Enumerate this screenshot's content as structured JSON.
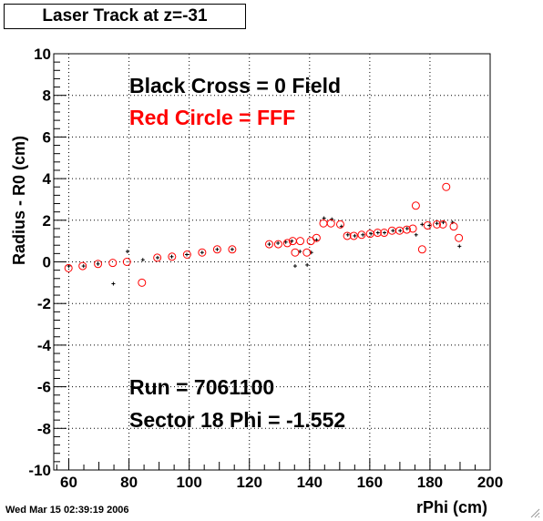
{
  "chart_data": {
    "type": "scatter",
    "title": "Laser Track at z=-31",
    "xlabel": "rPhi (cm)",
    "ylabel": "Radius - R0 (cm)",
    "xlim": [
      55,
      200
    ],
    "ylim": [
      -10,
      10
    ],
    "xticks": [
      60,
      80,
      100,
      120,
      140,
      160,
      180,
      200
    ],
    "yticks": [
      -10,
      -8,
      -6,
      -4,
      -2,
      0,
      2,
      4,
      6,
      8,
      10
    ],
    "grid": true,
    "annotations": [
      {
        "text": "Black Cross  = 0 Field",
        "color": "#000000"
      },
      {
        "text": "Red Circle = FFF",
        "color": "#ff0000"
      },
      {
        "text": "Run = 7061100",
        "color": "#000000"
      },
      {
        "text": "Sector 18 Phi = -1.552",
        "color": "#000000"
      }
    ],
    "series": [
      {
        "marker": "cross",
        "color": "#000000",
        "points": [
          [
            60.0,
            -0.2
          ],
          [
            64.9,
            -0.2
          ],
          [
            69.7,
            -0.1
          ],
          [
            74.8,
            -1.05
          ],
          [
            79.5,
            0.5
          ],
          [
            84.6,
            0.1
          ],
          [
            89.5,
            0.2
          ],
          [
            94.2,
            0.25
          ],
          [
            99.2,
            0.35
          ],
          [
            104.3,
            0.45
          ],
          [
            109.3,
            0.6
          ],
          [
            114.3,
            0.6
          ],
          [
            126.6,
            0.85
          ],
          [
            129.5,
            0.9
          ],
          [
            132.1,
            0.95
          ],
          [
            134.1,
            1.0
          ],
          [
            135.2,
            -0.2
          ],
          [
            136.8,
            0.5
          ],
          [
            139.2,
            -0.15
          ],
          [
            140.6,
            0.45
          ],
          [
            142.3,
            1.05
          ],
          [
            144.8,
            2.1
          ],
          [
            147.4,
            2.05
          ],
          [
            150.6,
            1.7
          ],
          [
            152.7,
            1.3
          ],
          [
            155.0,
            1.25
          ],
          [
            157.7,
            1.3
          ],
          [
            160.4,
            1.35
          ],
          [
            162.7,
            1.4
          ],
          [
            164.9,
            1.4
          ],
          [
            167.7,
            1.5
          ],
          [
            170.1,
            1.5
          ],
          [
            172.4,
            1.6
          ],
          [
            175.4,
            1.3
          ],
          [
            177.4,
            1.8
          ],
          [
            179.8,
            1.75
          ],
          [
            182.3,
            1.85
          ],
          [
            184.4,
            1.9
          ],
          [
            187.5,
            1.9
          ],
          [
            189.8,
            0.75
          ]
        ]
      },
      {
        "marker": "circle",
        "color": "#ff0000",
        "points": [
          [
            59.9,
            -0.3
          ],
          [
            64.6,
            -0.2
          ],
          [
            69.7,
            -0.1
          ],
          [
            74.6,
            -0.05
          ],
          [
            79.3,
            0.0
          ],
          [
            84.3,
            -1.0
          ],
          [
            89.4,
            0.2
          ],
          [
            94.3,
            0.25
          ],
          [
            99.3,
            0.35
          ],
          [
            104.3,
            0.45
          ],
          [
            109.3,
            0.6
          ],
          [
            114.3,
            0.6
          ],
          [
            126.6,
            0.85
          ],
          [
            129.6,
            0.85
          ],
          [
            132.6,
            0.9
          ],
          [
            134.4,
            1.0
          ],
          [
            135.2,
            0.45
          ],
          [
            136.9,
            1.0
          ],
          [
            139.1,
            0.45
          ],
          [
            140.4,
            1.0
          ],
          [
            142.3,
            1.15
          ],
          [
            144.6,
            1.85
          ],
          [
            147.1,
            1.85
          ],
          [
            150.2,
            1.8
          ],
          [
            152.5,
            1.25
          ],
          [
            154.7,
            1.25
          ],
          [
            157.3,
            1.3
          ],
          [
            160.1,
            1.35
          ],
          [
            162.6,
            1.4
          ],
          [
            164.8,
            1.4
          ],
          [
            167.4,
            1.5
          ],
          [
            169.9,
            1.5
          ],
          [
            172.3,
            1.55
          ],
          [
            174.3,
            1.6
          ],
          [
            175.3,
            2.7
          ],
          [
            177.4,
            0.6
          ],
          [
            179.2,
            1.75
          ],
          [
            182.3,
            1.8
          ],
          [
            184.3,
            1.8
          ],
          [
            185.4,
            3.6
          ],
          [
            187.9,
            1.7
          ],
          [
            189.6,
            1.15
          ]
        ]
      }
    ]
  },
  "footer": {
    "timestamp": "Wed Mar 15 02:39:19 2006"
  }
}
